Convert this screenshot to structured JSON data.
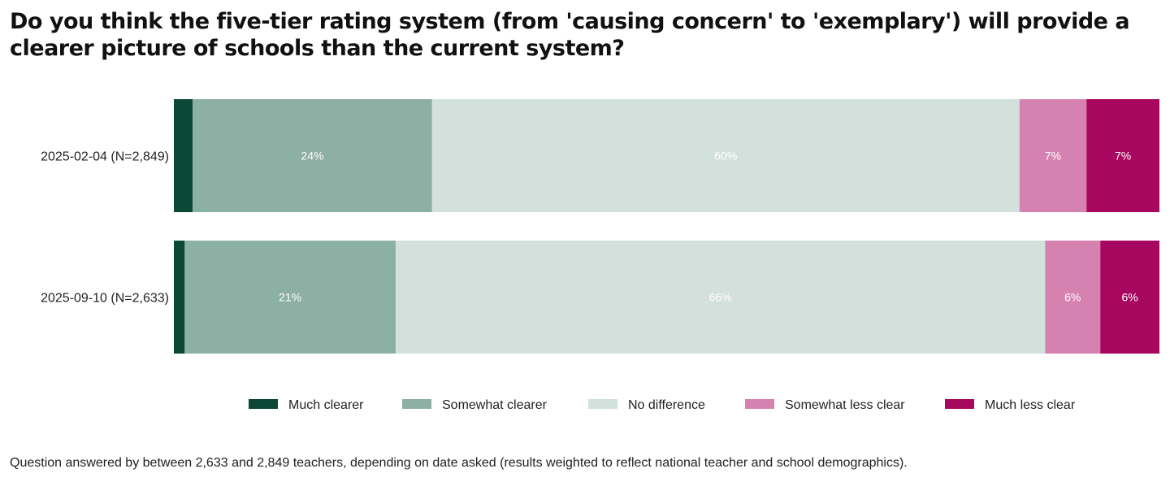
{
  "chart_data": {
    "type": "bar",
    "orientation": "horizontal",
    "stacked": true,
    "title": "Do you think the five-tier rating system (from 'causing concern' to 'exemplary') will provide a clearer picture of schools than the current system?",
    "categories": [
      "2025-02-04 (N=2,849)",
      "2025-09-10 (N=2,633)"
    ],
    "series": [
      {
        "name": "Much clearer",
        "color": "#0b4835",
        "values": [
          1.9,
          1.1
        ],
        "labels": [
          "",
          ""
        ]
      },
      {
        "name": "Somewhat clearer",
        "color": "#8db0a5",
        "values": [
          24.3,
          21.4
        ],
        "labels": [
          "24%",
          "21%"
        ]
      },
      {
        "name": "No difference",
        "color": "#d2e1dc",
        "values": [
          59.6,
          65.9
        ],
        "labels": [
          "60%",
          "66%"
        ]
      },
      {
        "name": "Somewhat less clear",
        "color": "#d682b0",
        "values": [
          6.8,
          5.6
        ],
        "labels": [
          "7%",
          "6%"
        ]
      },
      {
        "name": "Much less clear",
        "color": "#a80760",
        "values": [
          7.4,
          6.0
        ],
        "labels": [
          "7%",
          "6%"
        ]
      }
    ],
    "xlim": [
      0,
      100
    ],
    "legend": "bottom",
    "grid": false
  },
  "footnote": "Question answered by between 2,633 and 2,849 teachers, depending on date asked (results weighted to reflect national teacher and school demographics)."
}
